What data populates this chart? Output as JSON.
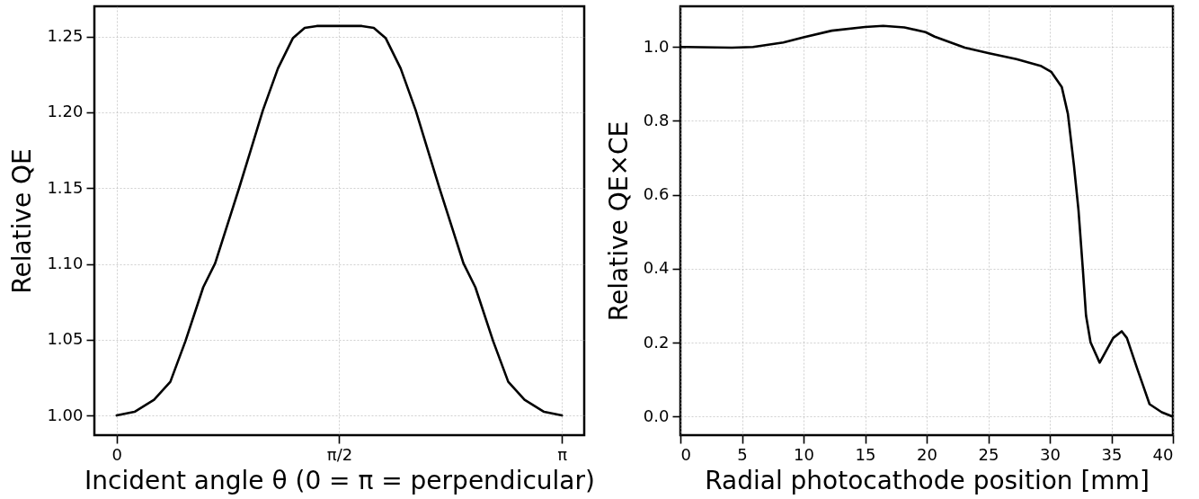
{
  "chart_data": [
    {
      "type": "line",
      "xlabel": "Incident angle θ (0 = π = perpendicular)",
      "ylabel": "Relative QE",
      "color": "#000000",
      "grid": true,
      "line_style": "solid",
      "marker": "none",
      "x": [
        0,
        0.126,
        0.264,
        0.379,
        0.485,
        0.611,
        0.695,
        0.864,
        0.948,
        1.032,
        1.138,
        1.243,
        1.327,
        1.412,
        1.5708,
        1.73,
        1.814,
        1.899,
        2.004,
        2.11,
        2.194,
        2.278,
        2.447,
        2.531,
        2.657,
        2.763,
        2.878,
        3.016,
        3.1416
      ],
      "values": [
        1.0,
        1.0024,
        1.0103,
        1.0222,
        1.0489,
        1.0846,
        1.1004,
        1.15,
        1.1756,
        1.2014,
        1.229,
        1.2489,
        1.2558,
        1.257,
        1.257,
        1.257,
        1.2558,
        1.2489,
        1.229,
        1.2014,
        1.1756,
        1.15,
        1.1004,
        1.0846,
        1.0489,
        1.0222,
        1.0103,
        1.0024,
        1.0
      ],
      "xlim": [
        -0.157,
        3.299
      ],
      "ylim": [
        0.987,
        1.27
      ],
      "xticks": [
        {
          "value": 0,
          "label": "0"
        },
        {
          "value": 1.5708,
          "label": "π/2"
        },
        {
          "value": 3.1416,
          "label": "π"
        }
      ],
      "yticks": [
        {
          "value": 1.0,
          "label": "1.00"
        },
        {
          "value": 1.05,
          "label": "1.05"
        },
        {
          "value": 1.1,
          "label": "1.10"
        },
        {
          "value": 1.15,
          "label": "1.15"
        },
        {
          "value": 1.2,
          "label": "1.20"
        },
        {
          "value": 1.25,
          "label": "1.25"
        }
      ]
    },
    {
      "type": "line",
      "xlabel": "Radial photocathode position [mm]",
      "ylabel": "Relative QE×CE",
      "color": "#000000",
      "grid": true,
      "line_style": "solid",
      "marker": "none",
      "x": [
        0,
        4.18,
        5.9,
        8.36,
        10,
        12.29,
        15,
        16.47,
        18.19,
        19.91,
        20.65,
        23.1,
        25.07,
        27.29,
        29.25,
        30.11,
        30.97,
        31.47,
        31.96,
        32.33,
        32.69,
        32.94,
        33.31,
        34.05,
        35.15,
        35.84,
        36.26,
        37.12,
        38.1,
        39.09,
        40
      ],
      "values": [
        1.0,
        0.998,
        1.0,
        1.012,
        1.026,
        1.044,
        1.054,
        1.057,
        1.053,
        1.04,
        1.028,
        0.998,
        0.983,
        0.967,
        0.949,
        0.933,
        0.892,
        0.819,
        0.68,
        0.559,
        0.396,
        0.274,
        0.201,
        0.146,
        0.213,
        0.231,
        0.213,
        0.128,
        0.034,
        0.012,
        0.0
      ],
      "xlim": [
        0,
        40
      ],
      "ylim": [
        -0.05,
        1.11
      ],
      "xticks": [
        0,
        5,
        10,
        15,
        20,
        25,
        30,
        35,
        40
      ],
      "yticks": [
        {
          "value": 0,
          "label": "0.0"
        },
        {
          "value": 0.2,
          "label": "0.2"
        },
        {
          "value": 0.4,
          "label": "0.4"
        },
        {
          "value": 0.6,
          "label": "0.6"
        },
        {
          "value": 0.8,
          "label": "0.8"
        },
        {
          "value": 1.0,
          "label": "1.0"
        }
      ]
    }
  ]
}
